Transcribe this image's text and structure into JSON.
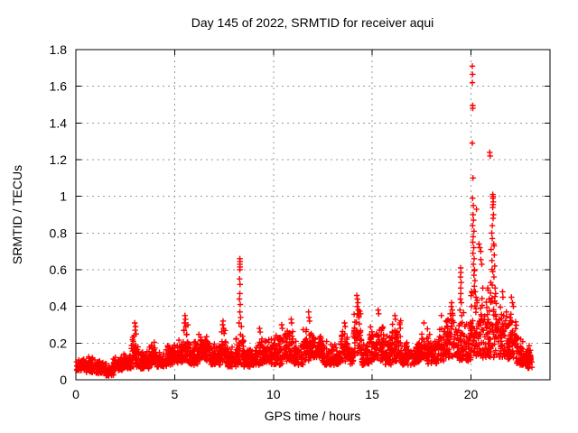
{
  "window": {
    "background": "#ffffff"
  },
  "chart_data": {
    "type": "scatter",
    "title": "Day 145 of 2022, SRMTID for receiver aqui",
    "xlabel": "GPS time / hours",
    "ylabel": "SRMTID / TECUs",
    "xlim": [
      0,
      24
    ],
    "ylim": [
      0,
      1.8
    ],
    "xticks": [
      0,
      5,
      10,
      15,
      20
    ],
    "xtick_labels": [
      "0",
      "5",
      "10",
      "15",
      "20"
    ],
    "yticks": [
      0,
      0.2,
      0.4,
      0.6,
      0.8,
      1,
      1.2,
      1.4,
      1.6,
      1.8
    ],
    "ytick_labels": [
      "0",
      "0.2",
      "0.4",
      "0.6",
      "0.8",
      "1",
      "1.2",
      "1.4",
      "1.6",
      "1.8"
    ],
    "grid": true,
    "grid_x": [
      5,
      10,
      15,
      20
    ],
    "grid_y": [
      0.2,
      0.4,
      0.6,
      0.8,
      1,
      1.2,
      1.4,
      1.6
    ],
    "legend": null,
    "marker": "plus",
    "series_name": "SRMTID",
    "series_color": "#ff0000",
    "grid_color": "#999999",
    "axis_color": "#000000",
    "seed": 145,
    "spike_points": [
      [
        2.98,
        0.31
      ],
      [
        3.02,
        0.29
      ],
      [
        3.0,
        0.27
      ],
      [
        3.05,
        0.25
      ],
      [
        2.95,
        0.24
      ],
      [
        5.52,
        0.35
      ],
      [
        5.55,
        0.33
      ],
      [
        5.5,
        0.31
      ],
      [
        5.57,
        0.29
      ],
      [
        5.48,
        0.27
      ],
      [
        7.45,
        0.32
      ],
      [
        7.43,
        0.3
      ],
      [
        7.48,
        0.28
      ],
      [
        8.3,
        0.66
      ],
      [
        8.31,
        0.645
      ],
      [
        8.3,
        0.63
      ],
      [
        8.31,
        0.615
      ],
      [
        8.3,
        0.6
      ],
      [
        8.29,
        0.55
      ],
      [
        8.31,
        0.52
      ],
      [
        8.3,
        0.47
      ],
      [
        8.28,
        0.44
      ],
      [
        8.32,
        0.41
      ],
      [
        8.3,
        0.37
      ],
      [
        8.34,
        0.34
      ],
      [
        8.26,
        0.31
      ],
      [
        8.38,
        0.29
      ],
      [
        9.3,
        0.28
      ],
      [
        9.33,
        0.26
      ],
      [
        10.42,
        0.3
      ],
      [
        10.45,
        0.28
      ],
      [
        10.9,
        0.33
      ],
      [
        10.92,
        0.31
      ],
      [
        11.78,
        0.37
      ],
      [
        11.8,
        0.34
      ],
      [
        11.83,
        0.32
      ],
      [
        13.6,
        0.31
      ],
      [
        13.63,
        0.29
      ],
      [
        14.22,
        0.46
      ],
      [
        14.25,
        0.44
      ],
      [
        14.28,
        0.42
      ],
      [
        14.24,
        0.4
      ],
      [
        14.3,
        0.38
      ],
      [
        14.26,
        0.36
      ],
      [
        14.32,
        0.34
      ],
      [
        15.3,
        0.38
      ],
      [
        15.33,
        0.36
      ],
      [
        16.15,
        0.35
      ],
      [
        16.18,
        0.33
      ],
      [
        17.62,
        0.31
      ],
      [
        18.5,
        0.35
      ],
      [
        18.95,
        0.36
      ],
      [
        19.0,
        0.4
      ],
      [
        19.02,
        0.42
      ],
      [
        19.05,
        0.38
      ],
      [
        19.48,
        0.61
      ],
      [
        19.49,
        0.585
      ],
      [
        19.47,
        0.56
      ],
      [
        19.5,
        0.53
      ],
      [
        19.48,
        0.5
      ],
      [
        19.49,
        0.47
      ],
      [
        19.46,
        0.44
      ],
      [
        19.51,
        0.42
      ],
      [
        19.44,
        0.38
      ],
      [
        19.53,
        0.35
      ],
      [
        20.07,
        1.71
      ],
      [
        20.08,
        1.665
      ],
      [
        20.07,
        1.62
      ],
      [
        20.085,
        1.495
      ],
      [
        20.09,
        1.48
      ],
      [
        20.07,
        1.29
      ],
      [
        20.1,
        1.1
      ],
      [
        20.08,
        0.99
      ],
      [
        20.12,
        0.95
      ],
      [
        20.1,
        0.9
      ],
      [
        20.28,
        0.93
      ],
      [
        20.13,
        0.87
      ],
      [
        20.08,
        0.84
      ],
      [
        20.15,
        0.81
      ],
      [
        20.11,
        0.78
      ],
      [
        20.09,
        0.75
      ],
      [
        20.14,
        0.72
      ],
      [
        20.1,
        0.69
      ],
      [
        20.16,
        0.66
      ],
      [
        20.12,
        0.63
      ],
      [
        20.18,
        0.6
      ],
      [
        20.15,
        0.57
      ],
      [
        20.2,
        0.54
      ],
      [
        20.17,
        0.51
      ],
      [
        20.22,
        0.48
      ],
      [
        20.25,
        0.45
      ],
      [
        20.3,
        0.42
      ],
      [
        20.4,
        0.74
      ],
      [
        20.45,
        0.72
      ],
      [
        20.5,
        0.7
      ],
      [
        20.5,
        0.655
      ],
      [
        20.55,
        0.63
      ],
      [
        20.6,
        0.5
      ],
      [
        20.95,
        1.24
      ],
      [
        20.97,
        1.22
      ],
      [
        21.1,
        1.01
      ],
      [
        21.12,
        1.0
      ],
      [
        21.11,
        0.99
      ],
      [
        21.13,
        0.97
      ],
      [
        21.12,
        0.955
      ],
      [
        21.1,
        0.94
      ],
      [
        21.14,
        0.9
      ],
      [
        21.12,
        0.88
      ],
      [
        21.08,
        0.84
      ],
      [
        21.05,
        0.8
      ],
      [
        21.08,
        0.77
      ],
      [
        21.15,
        0.74
      ],
      [
        21.17,
        0.73
      ],
      [
        21.02,
        0.71
      ],
      [
        21.18,
        0.68
      ],
      [
        21.06,
        0.65
      ],
      [
        21.2,
        0.62
      ],
      [
        21.1,
        0.59
      ],
      [
        21.16,
        0.56
      ],
      [
        21.0,
        0.53
      ],
      [
        21.22,
        0.5
      ],
      [
        21.25,
        0.47
      ],
      [
        20.92,
        0.44
      ],
      [
        21.6,
        0.48
      ],
      [
        21.62,
        0.45
      ],
      [
        22.05,
        0.45
      ],
      [
        22.1,
        0.42
      ],
      [
        22.15,
        0.4
      ]
    ],
    "noise_bands": [
      [
        0.0,
        0.5,
        0.05,
        0.12,
        55
      ],
      [
        0.5,
        1.0,
        0.04,
        0.13,
        55
      ],
      [
        1.0,
        1.5,
        0.03,
        0.12,
        55
      ],
      [
        1.5,
        1.9,
        0.02,
        0.1,
        44
      ],
      [
        1.9,
        2.4,
        0.05,
        0.14,
        55
      ],
      [
        2.4,
        2.8,
        0.06,
        0.16,
        44
      ],
      [
        2.8,
        3.2,
        0.07,
        0.24,
        44
      ],
      [
        3.2,
        3.7,
        0.06,
        0.17,
        55
      ],
      [
        3.7,
        4.1,
        0.08,
        0.22,
        44
      ],
      [
        4.1,
        4.6,
        0.07,
        0.18,
        55
      ],
      [
        4.6,
        5.1,
        0.08,
        0.23,
        58
      ],
      [
        5.1,
        5.45,
        0.09,
        0.25,
        39
      ],
      [
        5.45,
        5.7,
        0.1,
        0.32,
        28
      ],
      [
        5.7,
        6.2,
        0.08,
        0.22,
        58
      ],
      [
        6.2,
        6.8,
        0.1,
        0.26,
        70
      ],
      [
        6.8,
        7.3,
        0.08,
        0.21,
        58
      ],
      [
        7.3,
        7.6,
        0.1,
        0.3,
        34
      ],
      [
        7.6,
        8.1,
        0.07,
        0.18,
        55
      ],
      [
        8.1,
        8.5,
        0.08,
        0.28,
        44
      ],
      [
        8.5,
        9.0,
        0.07,
        0.18,
        55
      ],
      [
        9.0,
        9.5,
        0.08,
        0.24,
        55
      ],
      [
        9.5,
        10.0,
        0.08,
        0.24,
        55
      ],
      [
        10.0,
        10.5,
        0.08,
        0.26,
        55
      ],
      [
        10.5,
        11.0,
        0.1,
        0.3,
        58
      ],
      [
        11.0,
        11.5,
        0.08,
        0.23,
        55
      ],
      [
        11.5,
        12.0,
        0.1,
        0.32,
        58
      ],
      [
        12.0,
        12.5,
        0.1,
        0.27,
        58
      ],
      [
        12.5,
        13.0,
        0.08,
        0.22,
        55
      ],
      [
        13.0,
        13.4,
        0.08,
        0.2,
        44
      ],
      [
        13.4,
        13.8,
        0.1,
        0.3,
        44
      ],
      [
        13.8,
        14.05,
        0.08,
        0.2,
        28
      ],
      [
        14.05,
        14.45,
        0.12,
        0.42,
        44
      ],
      [
        14.45,
        14.85,
        0.08,
        0.22,
        44
      ],
      [
        14.85,
        15.15,
        0.1,
        0.3,
        34
      ],
      [
        15.15,
        15.6,
        0.1,
        0.36,
        50
      ],
      [
        15.6,
        16.0,
        0.08,
        0.25,
        44
      ],
      [
        16.0,
        16.45,
        0.1,
        0.33,
        50
      ],
      [
        16.45,
        17.0,
        0.08,
        0.22,
        61
      ],
      [
        17.0,
        17.5,
        0.08,
        0.22,
        55
      ],
      [
        17.5,
        17.8,
        0.1,
        0.3,
        34
      ],
      [
        17.8,
        18.3,
        0.08,
        0.26,
        55
      ],
      [
        18.3,
        18.75,
        0.1,
        0.34,
        50
      ],
      [
        18.75,
        19.2,
        0.12,
        0.38,
        50
      ],
      [
        19.2,
        19.6,
        0.1,
        0.32,
        44
      ],
      [
        19.6,
        20.0,
        0.1,
        0.4,
        46
      ],
      [
        20.0,
        20.35,
        0.12,
        0.6,
        42
      ],
      [
        20.35,
        20.85,
        0.12,
        0.5,
        58
      ],
      [
        20.85,
        21.35,
        0.12,
        0.62,
        58
      ],
      [
        21.35,
        21.8,
        0.12,
        0.46,
        50
      ],
      [
        21.8,
        22.3,
        0.1,
        0.4,
        55
      ],
      [
        22.3,
        22.7,
        0.08,
        0.26,
        44
      ],
      [
        22.7,
        23.1,
        0.06,
        0.2,
        44
      ]
    ]
  }
}
